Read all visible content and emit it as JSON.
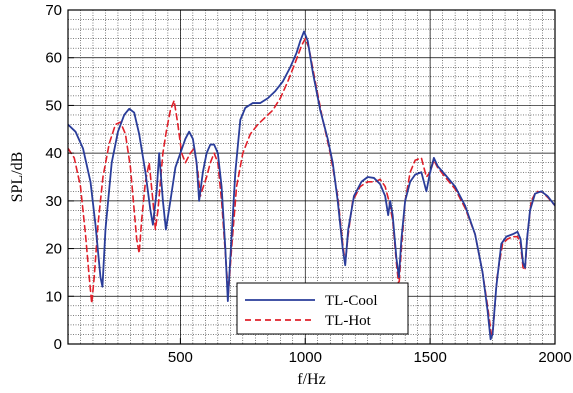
{
  "chart_data": {
    "type": "line",
    "title": "",
    "xlabel": "f/Hz",
    "ylabel": "SPL/dB",
    "xlim": [
      50,
      2000
    ],
    "ylim": [
      0,
      70
    ],
    "x_ticks": [
      500,
      1000,
      1500,
      2000
    ],
    "x_tick_labels": [
      "500",
      "1000",
      "1500",
      "2000"
    ],
    "y_ticks": [
      0,
      10,
      20,
      30,
      40,
      50,
      60,
      70
    ],
    "y_tick_labels": [
      "0",
      "10",
      "20",
      "30",
      "40",
      "50",
      "60",
      "70"
    ],
    "grid": true,
    "legend_position": "bottom-center",
    "series": [
      {
        "name": "TL-Cool",
        "color": "#2a3d9a",
        "style": "solid",
        "points": [
          [
            50,
            46
          ],
          [
            80,
            44.5
          ],
          [
            110,
            41
          ],
          [
            140,
            34
          ],
          [
            160,
            25
          ],
          [
            180,
            14
          ],
          [
            188,
            12
          ],
          [
            200,
            24
          ],
          [
            225,
            38
          ],
          [
            250,
            44.5
          ],
          [
            275,
            48
          ],
          [
            295,
            49.3
          ],
          [
            315,
            48.5
          ],
          [
            335,
            44
          ],
          [
            360,
            36
          ],
          [
            380,
            28
          ],
          [
            390,
            25
          ],
          [
            405,
            32
          ],
          [
            415,
            40
          ],
          [
            430,
            30
          ],
          [
            442,
            24
          ],
          [
            460,
            30
          ],
          [
            480,
            37
          ],
          [
            500,
            40
          ],
          [
            520,
            43
          ],
          [
            535,
            44.5
          ],
          [
            550,
            43
          ],
          [
            565,
            38
          ],
          [
            575,
            30
          ],
          [
            590,
            36
          ],
          [
            605,
            40
          ],
          [
            620,
            41.8
          ],
          [
            635,
            41.8
          ],
          [
            650,
            40
          ],
          [
            665,
            33
          ],
          [
            680,
            20
          ],
          [
            690,
            9
          ],
          [
            700,
            18
          ],
          [
            720,
            36
          ],
          [
            740,
            47
          ],
          [
            760,
            49.5
          ],
          [
            790,
            50.5
          ],
          [
            820,
            50.5
          ],
          [
            850,
            51.5
          ],
          [
            880,
            53
          ],
          [
            910,
            55
          ],
          [
            940,
            58
          ],
          [
            965,
            61
          ],
          [
            980,
            63.5
          ],
          [
            995,
            65.5
          ],
          [
            1010,
            63.5
          ],
          [
            1030,
            57
          ],
          [
            1060,
            49
          ],
          [
            1090,
            43
          ],
          [
            1110,
            38
          ],
          [
            1130,
            30
          ],
          [
            1150,
            20
          ],
          [
            1160,
            16.5
          ],
          [
            1172,
            24
          ],
          [
            1195,
            31
          ],
          [
            1225,
            34
          ],
          [
            1250,
            35
          ],
          [
            1275,
            34.8
          ],
          [
            1300,
            33.5
          ],
          [
            1320,
            31
          ],
          [
            1332,
            27
          ],
          [
            1340,
            30
          ],
          [
            1350,
            27
          ],
          [
            1365,
            18
          ],
          [
            1375,
            14
          ],
          [
            1385,
            22
          ],
          [
            1400,
            30
          ],
          [
            1420,
            34
          ],
          [
            1440,
            35.5
          ],
          [
            1465,
            36
          ],
          [
            1485,
            32
          ],
          [
            1500,
            36
          ],
          [
            1515,
            39
          ],
          [
            1530,
            37.3
          ],
          [
            1560,
            35.5
          ],
          [
            1600,
            33
          ],
          [
            1640,
            29
          ],
          [
            1680,
            23
          ],
          [
            1710,
            15
          ],
          [
            1730,
            7
          ],
          [
            1742,
            1
          ],
          [
            1750,
            2
          ],
          [
            1765,
            12
          ],
          [
            1785,
            21
          ],
          [
            1805,
            22.5
          ],
          [
            1830,
            23
          ],
          [
            1850,
            23.5
          ],
          [
            1862,
            22
          ],
          [
            1872,
            17
          ],
          [
            1880,
            16
          ],
          [
            1888,
            22
          ],
          [
            1900,
            28
          ],
          [
            1920,
            31.5
          ],
          [
            1945,
            32
          ],
          [
            1970,
            31
          ],
          [
            1985,
            30
          ],
          [
            2000,
            29
          ]
        ]
      },
      {
        "name": "TL-Hot",
        "color": "#e0202a",
        "style": "dashed",
        "points": [
          [
            50,
            41
          ],
          [
            75,
            39
          ],
          [
            100,
            33
          ],
          [
            120,
            23
          ],
          [
            135,
            14
          ],
          [
            145,
            8.5
          ],
          [
            155,
            14
          ],
          [
            170,
            25
          ],
          [
            190,
            35
          ],
          [
            215,
            42
          ],
          [
            240,
            46
          ],
          [
            260,
            46.5
          ],
          [
            280,
            44
          ],
          [
            300,
            37
          ],
          [
            315,
            28
          ],
          [
            325,
            22
          ],
          [
            335,
            19
          ],
          [
            345,
            26
          ],
          [
            360,
            34
          ],
          [
            375,
            38
          ],
          [
            390,
            30
          ],
          [
            400,
            24
          ],
          [
            410,
            28
          ],
          [
            420,
            34
          ],
          [
            430,
            40
          ],
          [
            445,
            45
          ],
          [
            460,
            49
          ],
          [
            475,
            51
          ],
          [
            490,
            46
          ],
          [
            505,
            40
          ],
          [
            520,
            38
          ],
          [
            540,
            40
          ],
          [
            555,
            41
          ],
          [
            570,
            36
          ],
          [
            580,
            31
          ],
          [
            592,
            33
          ],
          [
            605,
            35
          ],
          [
            620,
            38
          ],
          [
            635,
            40
          ],
          [
            650,
            38
          ],
          [
            665,
            30
          ],
          [
            680,
            19
          ],
          [
            692,
            10.5
          ],
          [
            705,
            20
          ],
          [
            725,
            33
          ],
          [
            750,
            40
          ],
          [
            780,
            44
          ],
          [
            810,
            46
          ],
          [
            840,
            47.5
          ],
          [
            870,
            49
          ],
          [
            900,
            51.5
          ],
          [
            930,
            55
          ],
          [
            960,
            59
          ],
          [
            985,
            62.5
          ],
          [
            1000,
            64
          ],
          [
            1015,
            62
          ],
          [
            1040,
            55
          ],
          [
            1070,
            47
          ],
          [
            1100,
            40
          ],
          [
            1130,
            31
          ],
          [
            1150,
            21
          ],
          [
            1160,
            17
          ],
          [
            1172,
            23
          ],
          [
            1190,
            30
          ],
          [
            1220,
            33
          ],
          [
            1250,
            34
          ],
          [
            1280,
            34
          ],
          [
            1300,
            34.5
          ],
          [
            1320,
            33
          ],
          [
            1335,
            30
          ],
          [
            1350,
            26
          ],
          [
            1365,
            17
          ],
          [
            1375,
            12
          ],
          [
            1385,
            20
          ],
          [
            1400,
            30
          ],
          [
            1420,
            36
          ],
          [
            1440,
            38.5
          ],
          [
            1465,
            39
          ],
          [
            1485,
            35
          ],
          [
            1500,
            36
          ],
          [
            1515,
            38.5
          ],
          [
            1530,
            37
          ],
          [
            1560,
            35
          ],
          [
            1600,
            32.5
          ],
          [
            1640,
            28.5
          ],
          [
            1680,
            23
          ],
          [
            1710,
            15
          ],
          [
            1730,
            8
          ],
          [
            1745,
            2
          ],
          [
            1752,
            3
          ],
          [
            1768,
            14
          ],
          [
            1790,
            21
          ],
          [
            1810,
            22
          ],
          [
            1830,
            22.5
          ],
          [
            1850,
            22.5
          ],
          [
            1862,
            21
          ],
          [
            1872,
            16
          ],
          [
            1880,
            15.5
          ],
          [
            1890,
            23
          ],
          [
            1905,
            30
          ],
          [
            1925,
            32
          ],
          [
            1950,
            31.8
          ],
          [
            1975,
            30.5
          ],
          [
            2000,
            29
          ]
        ]
      }
    ]
  }
}
